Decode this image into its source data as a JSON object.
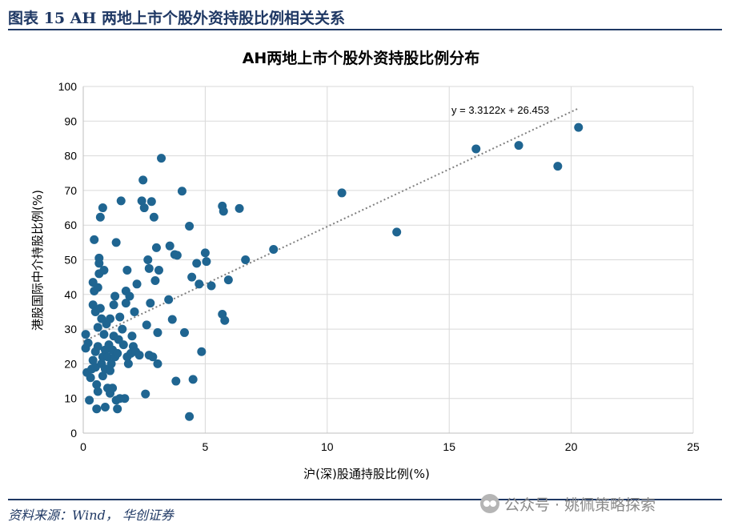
{
  "figure": {
    "label": "图表 15    AH 两地上市个股外资持股比例相关关系",
    "source": "资料来源：Wind， 华创证券",
    "watermark": "公众号 · 姚佩策略探索",
    "watermark_icon": "wechat-icon",
    "theme_color": "#1f3864"
  },
  "chart_data": {
    "type": "scatter",
    "title": "AH两地上市个股外资持股比例分布",
    "xlabel": "沪(深)股通持股比例(%)",
    "ylabel": "港股国际中介持股比例(%)",
    "xlim": [
      0,
      25
    ],
    "ylim": [
      0,
      100
    ],
    "xticks": [
      0,
      5,
      10,
      15,
      20,
      25
    ],
    "yticks": [
      0,
      10,
      20,
      30,
      40,
      50,
      60,
      70,
      80,
      90,
      100
    ],
    "grid": true,
    "legend": "none",
    "marker_color": "#1f6591",
    "trendline": {
      "equation": "y = 3.3122x + 26.453",
      "slope": 3.3122,
      "intercept": 26.453,
      "x_range": [
        0,
        20.3
      ],
      "style": "dotted",
      "color": "#808080"
    },
    "points": [
      [
        0.1,
        28.5
      ],
      [
        0.1,
        24.5
      ],
      [
        0.15,
        17.5
      ],
      [
        0.2,
        26
      ],
      [
        0.25,
        9.5
      ],
      [
        0.3,
        16
      ],
      [
        0.35,
        18.5
      ],
      [
        0.4,
        21
      ],
      [
        0.4,
        37
      ],
      [
        0.4,
        43.5
      ],
      [
        0.45,
        55.8
      ],
      [
        0.45,
        41
      ],
      [
        0.5,
        35
      ],
      [
        0.5,
        23.5
      ],
      [
        0.5,
        19
      ],
      [
        0.55,
        14
      ],
      [
        0.55,
        7
      ],
      [
        0.6,
        12
      ],
      [
        0.6,
        30.5
      ],
      [
        0.6,
        25
      ],
      [
        0.6,
        42
      ],
      [
        0.65,
        49
      ],
      [
        0.65,
        50.5
      ],
      [
        0.65,
        46
      ],
      [
        0.7,
        62.3
      ],
      [
        0.7,
        36
      ],
      [
        0.75,
        33
      ],
      [
        0.75,
        20
      ],
      [
        0.8,
        65
      ],
      [
        0.8,
        22
      ],
      [
        0.8,
        16.5
      ],
      [
        0.85,
        47
      ],
      [
        0.85,
        28.5
      ],
      [
        0.9,
        7.5
      ],
      [
        0.9,
        18.5
      ],
      [
        0.9,
        24
      ],
      [
        0.95,
        31.5
      ],
      [
        1.0,
        13
      ],
      [
        1.0,
        22
      ],
      [
        1.05,
        25.5
      ],
      [
        1.1,
        11.5
      ],
      [
        1.1,
        18
      ],
      [
        1.1,
        33
      ],
      [
        1.15,
        20
      ],
      [
        1.2,
        13
      ],
      [
        1.2,
        24
      ],
      [
        1.25,
        28
      ],
      [
        1.25,
        37
      ],
      [
        1.3,
        39.5
      ],
      [
        1.3,
        22
      ],
      [
        1.35,
        9.5
      ],
      [
        1.35,
        55
      ],
      [
        1.4,
        7
      ],
      [
        1.4,
        23
      ],
      [
        1.45,
        27
      ],
      [
        1.5,
        33.5
      ],
      [
        1.5,
        10
      ],
      [
        1.55,
        67
      ],
      [
        1.6,
        30
      ],
      [
        1.65,
        25.5
      ],
      [
        1.7,
        10
      ],
      [
        1.75,
        37.5
      ],
      [
        1.75,
        41
      ],
      [
        1.8,
        47
      ],
      [
        1.8,
        22
      ],
      [
        1.85,
        20
      ],
      [
        1.9,
        39.5
      ],
      [
        1.95,
        23
      ],
      [
        2.0,
        28
      ],
      [
        2.05,
        25
      ],
      [
        2.1,
        35
      ],
      [
        2.15,
        23.5
      ],
      [
        2.2,
        43
      ],
      [
        2.3,
        22.5
      ],
      [
        2.4,
        67
      ],
      [
        2.45,
        73
      ],
      [
        2.5,
        65
      ],
      [
        2.55,
        11.3
      ],
      [
        2.6,
        31.2
      ],
      [
        2.65,
        50
      ],
      [
        2.7,
        22.5
      ],
      [
        2.7,
        47.5
      ],
      [
        2.75,
        37.5
      ],
      [
        2.8,
        66.8
      ],
      [
        2.85,
        22
      ],
      [
        2.9,
        62.3
      ],
      [
        2.95,
        44
      ],
      [
        3.0,
        53.5
      ],
      [
        3.05,
        29
      ],
      [
        3.05,
        20
      ],
      [
        3.1,
        47
      ],
      [
        3.2,
        79.3
      ],
      [
        3.5,
        38.5
      ],
      [
        3.55,
        54
      ],
      [
        3.65,
        32.8
      ],
      [
        3.75,
        51.5
      ],
      [
        3.8,
        15
      ],
      [
        3.85,
        51.3
      ],
      [
        4.05,
        69.8
      ],
      [
        4.15,
        29
      ],
      [
        4.35,
        59.7
      ],
      [
        4.35,
        4.8
      ],
      [
        4.45,
        45
      ],
      [
        4.5,
        15.5
      ],
      [
        4.65,
        49
      ],
      [
        4.75,
        43
      ],
      [
        4.85,
        23.5
      ],
      [
        5.0,
        52
      ],
      [
        5.05,
        49.5
      ],
      [
        5.25,
        42.5
      ],
      [
        5.7,
        65.5
      ],
      [
        5.7,
        34.3
      ],
      [
        5.75,
        64
      ],
      [
        5.8,
        32.5
      ],
      [
        5.95,
        44.2
      ],
      [
        6.4,
        64.8
      ],
      [
        6.65,
        50
      ],
      [
        7.8,
        53
      ],
      [
        10.6,
        69.3
      ],
      [
        12.85,
        58
      ],
      [
        16.1,
        82
      ],
      [
        17.85,
        83
      ],
      [
        19.45,
        77
      ],
      [
        20.3,
        88.2
      ]
    ]
  }
}
